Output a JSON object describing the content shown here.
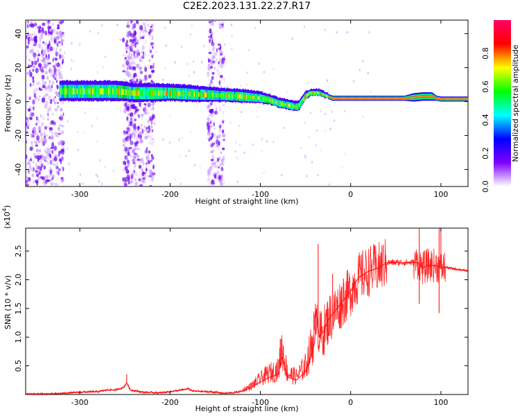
{
  "title": "C2E2.2023.131.22.27.R17",
  "chart_data": [
    {
      "type": "heatmap",
      "xlabel": "Height of straight line (km)",
      "ylabel": "Frequency (Hz)",
      "xlim": [
        -360,
        130
      ],
      "ylim": [
        -50,
        48
      ],
      "xticks": [
        -300,
        -200,
        -100,
        0,
        100
      ],
      "yticks": [
        -40,
        -20,
        0,
        20,
        40
      ],
      "colorbar": {
        "label": "Normalized spectral amplitude",
        "range": [
          0,
          1
        ],
        "ticks": [
          0.0,
          0.2,
          0.4,
          0.6,
          0.8
        ],
        "colormap": [
          "#ffffff",
          "#7f00ff",
          "#0000ff",
          "#00ffff",
          "#00ff00",
          "#ffff00",
          "#ff0000",
          "#ff0066"
        ]
      },
      "signal_ridge": {
        "x": [
          -320,
          -300,
          -280,
          -260,
          -240,
          -220,
          -200,
          -180,
          -160,
          -140,
          -120,
          -100,
          -90,
          -80,
          -70,
          -62,
          -58,
          -50,
          -45,
          -40,
          -35,
          -30,
          -25,
          -20,
          -10,
          0,
          20,
          40,
          60,
          70,
          80,
          90,
          95,
          100,
          110,
          130
        ],
        "y": [
          6,
          6,
          6,
          6,
          5,
          5,
          5,
          4.5,
          4,
          3.5,
          3,
          2,
          1,
          -1,
          -2,
          -3,
          -3,
          3,
          5,
          5,
          5,
          4,
          3,
          2,
          2,
          2,
          2,
          2,
          2,
          2.5,
          3,
          3,
          2,
          1.5,
          1.5,
          1.5
        ],
        "halfwidth": [
          6,
          6,
          6,
          6,
          5.5,
          5.5,
          5,
          5,
          4.5,
          4,
          4,
          3.5,
          3,
          3,
          3,
          3,
          3,
          2.5,
          2,
          2,
          2,
          2,
          1.5,
          1.5,
          1.5,
          1.5,
          1.5,
          1.5,
          1.5,
          2.5,
          2.5,
          2.5,
          1.5,
          1.5,
          1.5,
          1.5
        ]
      },
      "noise_bands": [
        [
          -360,
          -318
        ],
        [
          -252,
          -238
        ],
        [
          -248,
          -218
        ],
        [
          -158,
          -140
        ]
      ]
    },
    {
      "type": "line",
      "xlabel": "Height of straight line (km)",
      "ylabel": "SNR (10 * v/v)",
      "y_multiplier": "(x10",
      "y_multiplier_exp": "4",
      "y_multiplier_close": ")",
      "xlim": [
        -360,
        130
      ],
      "ylim": [
        0,
        2.9
      ],
      "xticks": [
        -300,
        -200,
        -100,
        0,
        100
      ],
      "yticks": [
        0.5,
        1.0,
        1.5,
        2.0,
        2.5
      ],
      "series": [
        {
          "color": "#ff0000",
          "x": [
            -360,
            -330,
            -300,
            -280,
            -270,
            -260,
            -252,
            -248,
            -244,
            -230,
            -210,
            -190,
            -180,
            -175,
            -160,
            -150,
            -140,
            -130,
            -120,
            -110,
            -100,
            -90,
            -80,
            -76,
            -70,
            -60,
            -50,
            -45,
            -40,
            -38,
            -35,
            -30,
            -25,
            -20,
            -15,
            -10,
            -5,
            0,
            5,
            10,
            15,
            20,
            30,
            40,
            50,
            60,
            70,
            75,
            80,
            85,
            90,
            95,
            100,
            105,
            110,
            120,
            130
          ],
          "y": [
            0.01,
            0.01,
            0.04,
            0.05,
            0.08,
            0.08,
            0.12,
            0.2,
            0.08,
            0.04,
            0.03,
            0.07,
            0.1,
            0.06,
            0.05,
            0.04,
            0.02,
            0.03,
            0.06,
            0.12,
            0.22,
            0.3,
            0.35,
            0.65,
            0.3,
            0.25,
            0.4,
            0.6,
            0.9,
            1.5,
            1.0,
            1.1,
            1.3,
            1.4,
            1.5,
            1.6,
            1.7,
            1.8,
            1.95,
            2.05,
            2.1,
            2.15,
            2.2,
            2.3,
            2.3,
            2.3,
            2.3,
            2.3,
            2.2,
            2.25,
            2.25,
            2.25,
            2.2,
            2.22,
            2.2,
            2.18,
            2.15
          ]
        }
      ],
      "spikes": [
        {
          "x": -248,
          "y": 0.35
        },
        {
          "x": -78,
          "y": 0.97
        },
        {
          "x": -36,
          "y": 2.62
        },
        {
          "x": -20,
          "y": 2.1
        },
        {
          "x": -8,
          "y": 2.02
        },
        {
          "x": 76,
          "y": 2.9
        },
        {
          "x": 98,
          "y": 2.9
        },
        {
          "x": 100,
          "y": 2.9
        },
        {
          "x": 76,
          "y": 1.58
        },
        {
          "x": 98,
          "y": 1.42
        }
      ]
    }
  ]
}
